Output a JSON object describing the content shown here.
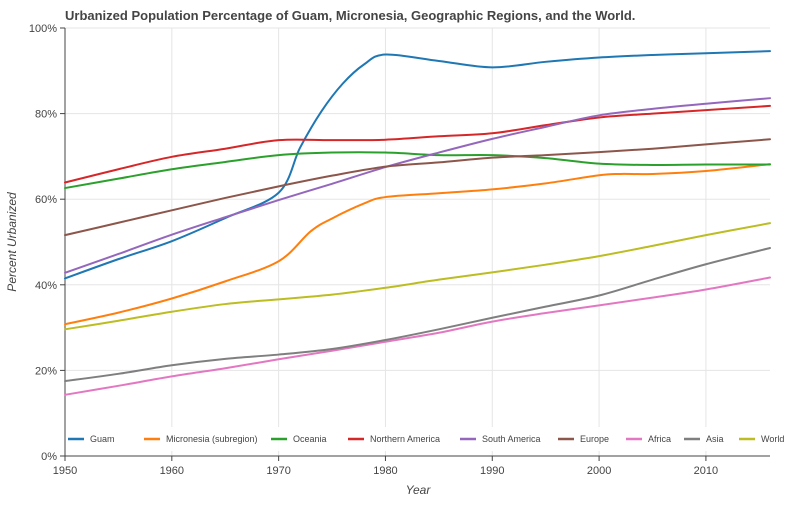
{
  "chart_data": {
    "type": "line",
    "title": "Urbanized Population Percentage of Guam, Micronesia, Geographic Regions, and the World.",
    "xlabel": "Year",
    "ylabel": "Percent Urbanized",
    "xlim": [
      1950,
      2016
    ],
    "ylim": [
      0,
      100
    ],
    "x_ticks": [
      1950,
      1960,
      1970,
      1980,
      1990,
      2000,
      2010
    ],
    "x_tick_labels": [
      "1950",
      "1960",
      "1970",
      "1980",
      "1990",
      "2000",
      "2010"
    ],
    "y_ticks": [
      0,
      20,
      40,
      60,
      80,
      100
    ],
    "y_tick_labels": [
      "0%",
      "20%",
      "40%",
      "60%",
      "80%",
      "100%"
    ],
    "grid": true,
    "legend_position": "bottom",
    "series": [
      {
        "name": "Guam",
        "color": "#1f77b4",
        "x": [
          1950,
          1955,
          1960,
          1965,
          1970,
          1972,
          1974,
          1976,
          1978,
          1980,
          1985,
          1990,
          1995,
          2000,
          2005,
          2010,
          2016
        ],
        "y": [
          41.5,
          46.0,
          50.2,
          55.6,
          61.5,
          72.0,
          80.5,
          87.0,
          91.5,
          93.8,
          92.3,
          90.8,
          92.1,
          93.1,
          93.7,
          94.1,
          94.6
        ]
      },
      {
        "name": "Micronesia (subregion)",
        "color": "#ff7f0e",
        "x": [
          1950,
          1955,
          1960,
          1965,
          1970,
          1973,
          1975,
          1978,
          1980,
          1985,
          1990,
          1995,
          2000,
          2002,
          2005,
          2010,
          2016
        ],
        "y": [
          30.8,
          33.5,
          36.8,
          40.8,
          45.5,
          52.5,
          55.5,
          59.0,
          60.5,
          61.4,
          62.3,
          63.7,
          65.6,
          65.9,
          65.9,
          66.6,
          68.2
        ]
      },
      {
        "name": "Oceania",
        "color": "#2ca02c",
        "x": [
          1950,
          1955,
          1960,
          1965,
          1970,
          1975,
          1980,
          1985,
          1990,
          1995,
          2000,
          2005,
          2010,
          2016
        ],
        "y": [
          62.6,
          64.8,
          67.0,
          68.7,
          70.3,
          70.9,
          70.9,
          70.3,
          70.3,
          69.6,
          68.3,
          68.0,
          68.1,
          68.1
        ]
      },
      {
        "name": "Northern America",
        "color": "#d62728",
        "x": [
          1950,
          1955,
          1960,
          1965,
          1970,
          1975,
          1980,
          1985,
          1990,
          1995,
          2000,
          2005,
          2010,
          2016
        ],
        "y": [
          63.9,
          67.0,
          69.9,
          71.8,
          73.8,
          73.8,
          73.9,
          74.7,
          75.4,
          77.3,
          79.1,
          80.0,
          80.8,
          81.8
        ]
      },
      {
        "name": "South America",
        "color": "#9467bd",
        "x": [
          1950,
          1955,
          1960,
          1965,
          1970,
          1975,
          1980,
          1985,
          1990,
          1995,
          2000,
          2005,
          2010,
          2016
        ],
        "y": [
          42.8,
          47.2,
          51.7,
          55.8,
          59.8,
          63.6,
          67.5,
          70.9,
          74.1,
          76.9,
          79.6,
          81.1,
          82.3,
          83.6
        ]
      },
      {
        "name": "Europe",
        "color": "#8c564b",
        "x": [
          1950,
          1955,
          1960,
          1965,
          1970,
          1975,
          1980,
          1985,
          1990,
          1995,
          2000,
          2005,
          2010,
          2016
        ],
        "y": [
          51.6,
          54.5,
          57.4,
          60.3,
          63.0,
          65.5,
          67.6,
          68.6,
          69.7,
          70.3,
          71.0,
          71.8,
          72.8,
          74.0
        ]
      },
      {
        "name": "Africa",
        "color": "#e377c2",
        "x": [
          1950,
          1955,
          1960,
          1965,
          1970,
          1975,
          1980,
          1985,
          1990,
          1995,
          2000,
          2005,
          2010,
          2016
        ],
        "y": [
          14.3,
          16.4,
          18.6,
          20.5,
          22.6,
          24.6,
          26.7,
          28.8,
          31.4,
          33.4,
          35.2,
          37.0,
          38.9,
          41.7
        ]
      },
      {
        "name": "Asia",
        "color": "#7f7f7f",
        "x": [
          1950,
          1955,
          1960,
          1965,
          1970,
          1975,
          1980,
          1985,
          1990,
          1995,
          2000,
          2005,
          2010,
          2016
        ],
        "y": [
          17.5,
          19.2,
          21.2,
          22.7,
          23.7,
          25.0,
          27.1,
          29.6,
          32.3,
          34.9,
          37.5,
          41.2,
          44.8,
          48.6
        ]
      },
      {
        "name": "World",
        "color": "#bcbd22",
        "x": [
          1950,
          1955,
          1960,
          1965,
          1970,
          1975,
          1980,
          1985,
          1990,
          1995,
          2000,
          2005,
          2010,
          2016
        ],
        "y": [
          29.6,
          31.6,
          33.7,
          35.5,
          36.6,
          37.7,
          39.3,
          41.2,
          42.9,
          44.7,
          46.7,
          49.1,
          51.6,
          54.4
        ]
      }
    ]
  }
}
